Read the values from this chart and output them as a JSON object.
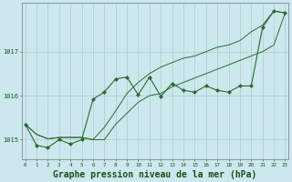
{
  "background_color": "#cce8ee",
  "grid_color": "#aacccc",
  "line_color": "#2d6a2d",
  "marker_color": "#2d6a2d",
  "xlabel": "Graphe pression niveau de la mer (hPa)",
  "xlabel_fontsize": 7,
  "yticks": [
    1015,
    1016,
    1017
  ],
  "xticks": [
    0,
    1,
    2,
    3,
    4,
    5,
    6,
    7,
    8,
    9,
    10,
    11,
    12,
    13,
    14,
    15,
    16,
    17,
    18,
    19,
    20,
    21,
    22,
    23
  ],
  "ylim": [
    1014.55,
    1018.1
  ],
  "xlim": [
    -0.3,
    23.3
  ],
  "series_main": [
    1015.35,
    1014.87,
    1014.82,
    1015.0,
    1014.9,
    1015.0,
    1015.92,
    1016.08,
    1016.38,
    1016.42,
    1016.02,
    1016.42,
    1015.98,
    1016.28,
    1016.12,
    1016.08,
    1016.22,
    1016.12,
    1016.08,
    1016.22,
    1016.22,
    1017.55,
    1017.92,
    1017.88
  ],
  "series_min": [
    1015.35,
    1015.12,
    1015.02,
    1015.05,
    1015.05,
    1015.05,
    1015.0,
    1015.0,
    1015.35,
    1015.6,
    1015.85,
    1016.0,
    1016.05,
    1016.2,
    1016.3,
    1016.4,
    1016.5,
    1016.6,
    1016.7,
    1016.8,
    1016.9,
    1017.0,
    1017.15,
    1017.88
  ],
  "series_max": [
    1015.35,
    1015.12,
    1015.02,
    1015.05,
    1015.05,
    1015.05,
    1015.0,
    1015.28,
    1015.65,
    1016.05,
    1016.3,
    1016.5,
    1016.65,
    1016.75,
    1016.85,
    1016.9,
    1017.0,
    1017.1,
    1017.15,
    1017.25,
    1017.45,
    1017.6,
    1017.92,
    1017.88
  ]
}
